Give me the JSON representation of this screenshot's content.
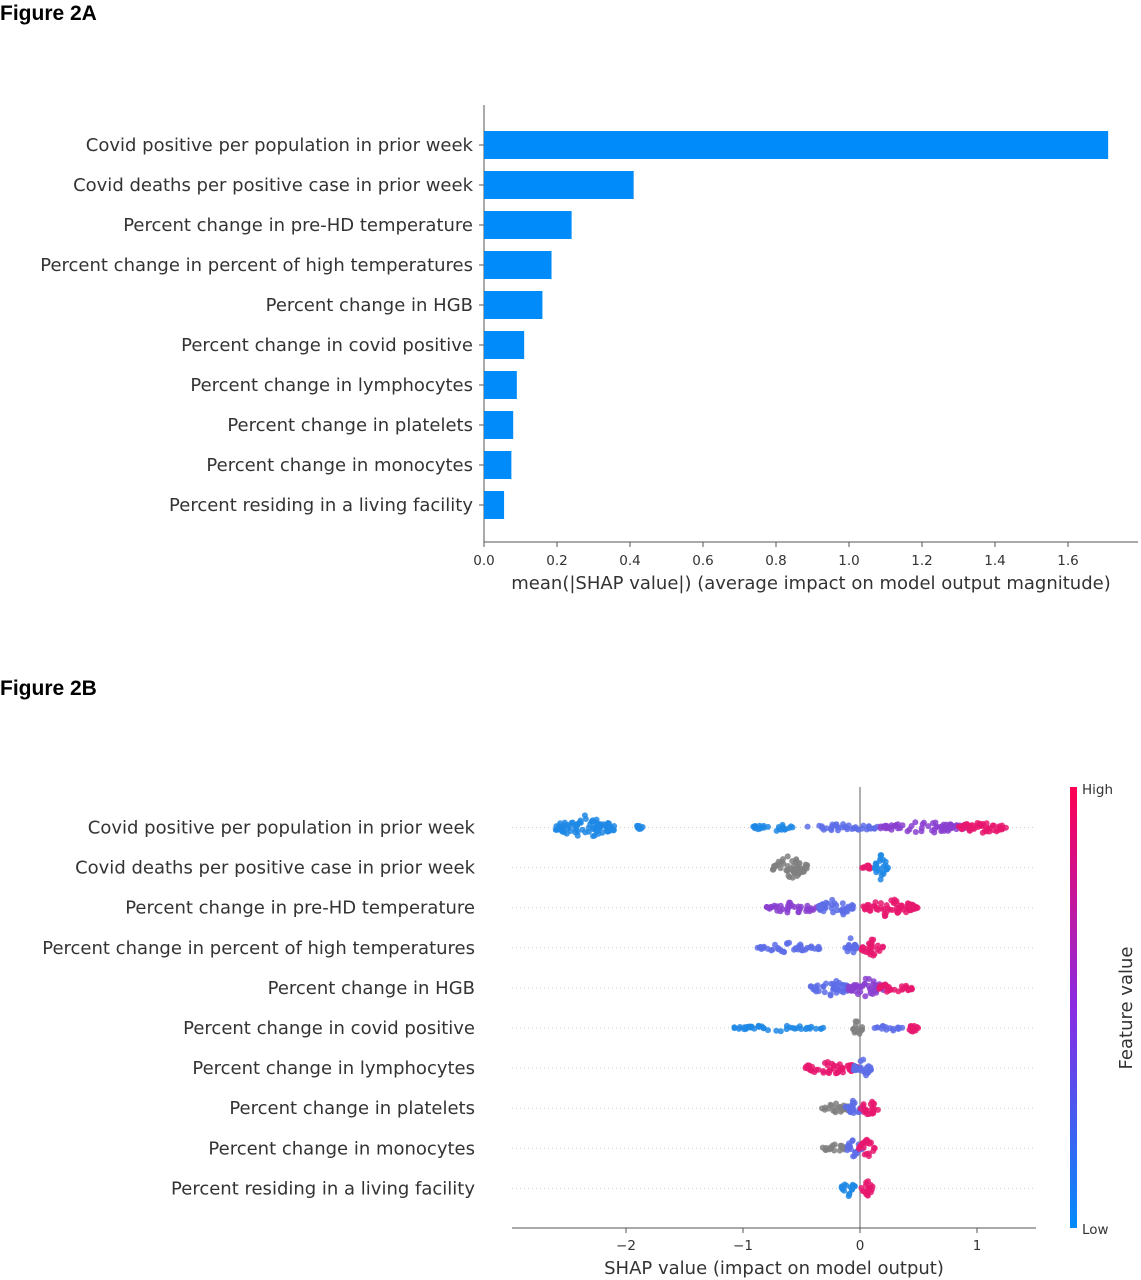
{
  "figure_a": {
    "title": "Figure 2A"
  },
  "figure_b": {
    "title": "Figure 2B"
  },
  "chart_data": [
    {
      "type": "bar",
      "orientation": "horizontal",
      "title": "",
      "categories": [
        "Covid positive per population in prior week",
        "Covid deaths per positive case in prior week",
        "Percent change in pre-HD temperature",
        "Percent change in percent of high temperatures",
        "Percent change in HGB",
        "Percent change in covid positive",
        "Percent change in lymphocytes",
        "Percent change in platelets",
        "Percent change in monocytes",
        "Percent residing in a living facility"
      ],
      "values": [
        1.71,
        0.41,
        0.24,
        0.185,
        0.16,
        0.11,
        0.09,
        0.08,
        0.075,
        0.055
      ],
      "xlabel": "mean(|SHAP value|) (average impact on model output magnitude)",
      "ylabel": "",
      "xlim": [
        0,
        1.8
      ],
      "xticks": [
        "0.0",
        "0.2",
        "0.4",
        "0.6",
        "0.8",
        "1.0",
        "1.2",
        "1.4",
        "1.6"
      ],
      "bar_color": "#008bfb"
    },
    {
      "type": "scatter",
      "subtype": "beeswarm",
      "title": "",
      "categories": [
        "Covid positive per population in prior week",
        "Covid deaths per positive case in prior week",
        "Percent change in pre-HD temperature",
        "Percent change in percent of high temperatures",
        "Percent change in HGB",
        "Percent change in covid positive",
        "Percent change in lymphocytes",
        "Percent change in platelets",
        "Percent change in monocytes",
        "Percent residing in a living facility"
      ],
      "series": [
        {
          "clusters": [
            {
              "center": -2.35,
              "width": 0.5,
              "density": 1.0,
              "color": "low"
            },
            {
              "center": -1.9,
              "width": 0.1,
              "density": 0.2,
              "color": "low"
            },
            {
              "center": -0.75,
              "width": 0.35,
              "density": 0.35,
              "color": "low"
            },
            {
              "center": -0.15,
              "width": 0.6,
              "density": 0.35,
              "color": "lowmid"
            },
            {
              "center": 0.55,
              "width": 0.75,
              "density": 0.5,
              "color": "mid"
            },
            {
              "center": 1.05,
              "width": 0.45,
              "density": 0.55,
              "color": "high"
            }
          ]
        },
        {
          "clusters": [
            {
              "center": -0.6,
              "width": 0.3,
              "density": 1.0,
              "color": "gray"
            },
            {
              "center": 0.05,
              "width": 0.08,
              "density": 0.3,
              "color": "high"
            },
            {
              "center": 0.18,
              "width": 0.12,
              "density": 1.0,
              "color": "low"
            }
          ]
        },
        {
          "clusters": [
            {
              "center": -0.55,
              "width": 0.5,
              "density": 0.5,
              "color": "mid"
            },
            {
              "center": -0.2,
              "width": 0.3,
              "density": 0.8,
              "color": "lowmid"
            },
            {
              "center": 0.25,
              "width": 0.45,
              "density": 0.8,
              "color": "high"
            },
            {
              "center": 0.47,
              "width": 0.06,
              "density": 0.1,
              "color": "high"
            }
          ]
        },
        {
          "clusters": [
            {
              "center": -0.6,
              "width": 0.55,
              "density": 0.4,
              "color": "lowmid"
            },
            {
              "center": -0.08,
              "width": 0.1,
              "density": 0.8,
              "color": "lowmid"
            },
            {
              "center": 0.1,
              "width": 0.2,
              "density": 0.7,
              "color": "high"
            }
          ]
        },
        {
          "clusters": [
            {
              "center": -0.25,
              "width": 0.35,
              "density": 0.7,
              "color": "lowmid"
            },
            {
              "center": 0.05,
              "width": 0.3,
              "density": 0.8,
              "color": "mid"
            },
            {
              "center": 0.3,
              "width": 0.3,
              "density": 0.5,
              "color": "high"
            }
          ]
        },
        {
          "clusters": [
            {
              "center": -0.7,
              "width": 0.8,
              "density": 0.3,
              "color": "low"
            },
            {
              "center": -0.02,
              "width": 0.08,
              "density": 0.8,
              "color": "gray"
            },
            {
              "center": 0.25,
              "width": 0.25,
              "density": 0.25,
              "color": "lowmid"
            },
            {
              "center": 0.45,
              "width": 0.12,
              "density": 0.3,
              "color": "high"
            }
          ]
        },
        {
          "clusters": [
            {
              "center": -0.25,
              "width": 0.5,
              "density": 0.6,
              "color": "high"
            },
            {
              "center": 0.02,
              "width": 0.15,
              "density": 0.9,
              "color": "lowmid"
            }
          ]
        },
        {
          "clusters": [
            {
              "center": -0.2,
              "width": 0.25,
              "density": 0.4,
              "color": "gray"
            },
            {
              "center": -0.05,
              "width": 0.15,
              "density": 0.7,
              "color": "lowmid"
            },
            {
              "center": 0.08,
              "width": 0.15,
              "density": 0.7,
              "color": "high"
            }
          ]
        },
        {
          "clusters": [
            {
              "center": -0.22,
              "width": 0.2,
              "density": 0.4,
              "color": "gray"
            },
            {
              "center": -0.06,
              "width": 0.16,
              "density": 0.7,
              "color": "lowmid"
            },
            {
              "center": 0.06,
              "width": 0.14,
              "density": 0.8,
              "color": "high"
            }
          ]
        },
        {
          "clusters": [
            {
              "center": -0.1,
              "width": 0.12,
              "density": 0.7,
              "color": "low"
            },
            {
              "center": 0.06,
              "width": 0.1,
              "density": 0.7,
              "color": "high"
            }
          ]
        }
      ],
      "xlabel": "SHAP value (impact on model output)",
      "ylabel": "",
      "xlim": [
        -2.98,
        1.52
      ],
      "xticks": [
        {
          "value": -2,
          "label": "−2"
        },
        {
          "value": -1,
          "label": "−1"
        },
        {
          "value": 0,
          "label": "0"
        },
        {
          "value": 1,
          "label": "1"
        }
      ],
      "colorbar": {
        "label": "Feature value",
        "high_label": "High",
        "low_label": "Low",
        "high_color": "#ff0052",
        "mid_color": "#8a2be2",
        "low_color": "#008bfb"
      },
      "colors": {
        "low": "#1e88e5",
        "lowmid": "#5d6de8",
        "mid": "#8a3fd0",
        "high": "#e8176e",
        "gray": "#808080"
      }
    }
  ]
}
